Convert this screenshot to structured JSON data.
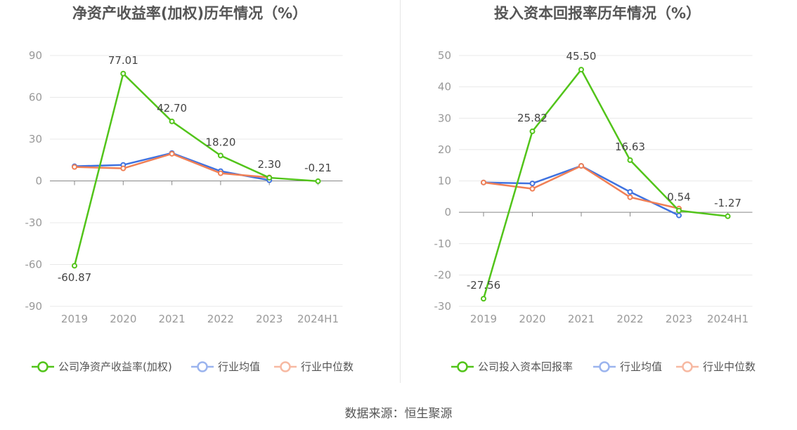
{
  "source": "数据来源：恒生聚源",
  "chart_data": [
    {
      "type": "line",
      "title": "净资产收益率(加权)历年情况（%）",
      "categories": [
        "2019",
        "2020",
        "2021",
        "2022",
        "2023",
        "2024H1"
      ],
      "ylim": [
        -90,
        90
      ],
      "yticks": [
        90,
        60,
        30,
        0,
        -30,
        -60,
        -90
      ],
      "grid": true,
      "legend_position": "bottom",
      "series": [
        {
          "name": "公司净资产收益率(加权)",
          "color": "#52c41a",
          "values": [
            -60.87,
            77.01,
            42.7,
            18.2,
            2.3,
            -0.21
          ],
          "labels": [
            "-60.87",
            "77.01",
            "42.70",
            "18.20",
            "2.30",
            "-0.21"
          ]
        },
        {
          "name": "行业均值",
          "color": "#3f72e0",
          "values": [
            10.5,
            11.5,
            20.0,
            7.0,
            0.5,
            null
          ]
        },
        {
          "name": "行业中位数",
          "color": "#f07f55",
          "values": [
            10.0,
            9.0,
            19.5,
            5.5,
            2.5,
            null
          ]
        }
      ]
    },
    {
      "type": "line",
      "title": "投入资本回报率历年情况（%）",
      "categories": [
        "2019",
        "2020",
        "2021",
        "2022",
        "2023",
        "2024H1"
      ],
      "ylim": [
        -30,
        50
      ],
      "yticks": [
        50,
        40,
        30,
        20,
        10,
        0,
        -10,
        -20,
        -30
      ],
      "grid": true,
      "legend_position": "bottom",
      "series": [
        {
          "name": "公司投入资本回报率",
          "color": "#52c41a",
          "values": [
            -27.56,
            25.82,
            45.5,
            16.63,
            0.54,
            -1.27
          ],
          "labels": [
            "-27.56",
            "25.82",
            "45.50",
            "16.63",
            "0.54",
            "-1.27"
          ]
        },
        {
          "name": "行业均值",
          "color": "#3f72e0",
          "values": [
            9.5,
            9.2,
            14.8,
            6.5,
            -1.0,
            null
          ]
        },
        {
          "name": "行业中位数",
          "color": "#f07f55",
          "values": [
            9.5,
            7.5,
            14.8,
            4.8,
            1.2,
            null
          ]
        }
      ]
    }
  ]
}
